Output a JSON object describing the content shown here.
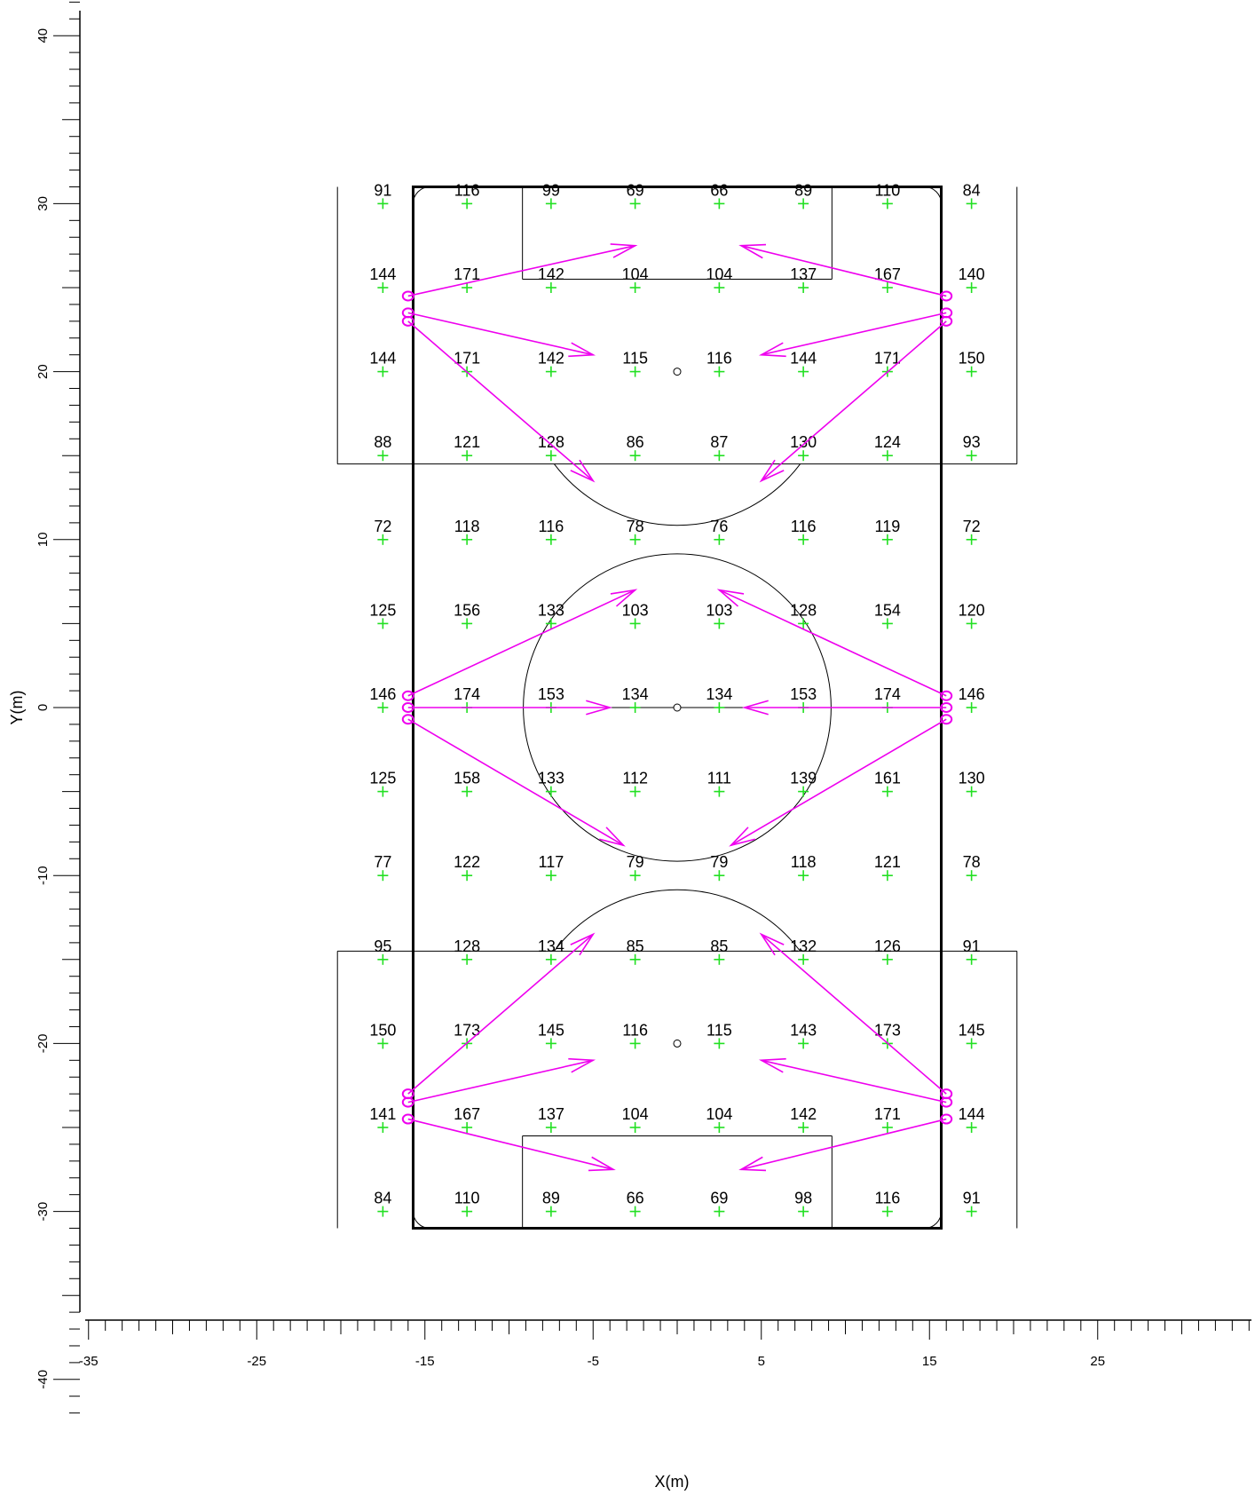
{
  "chart_data": {
    "type": "scatter",
    "xlabel": "X(m)",
    "ylabel": "Y(m)",
    "xlim": [
      -35,
      35
    ],
    "ylim": [
      -42,
      42
    ],
    "x_tick_labels": [
      "-35",
      "-25",
      "-15",
      "-5",
      "5",
      "15",
      "25"
    ],
    "y_tick_labels": [
      "40",
      "30",
      "20",
      "10",
      "0",
      "-10",
      "-20",
      "-30",
      "-40"
    ],
    "grid_x": [
      -17.5,
      -12.5,
      -7.5,
      -2.5,
      2.5,
      7.5,
      12.5,
      17.5
    ],
    "grid_y": [
      30,
      25,
      20,
      15,
      10,
      5,
      0,
      -5,
      -10,
      -15,
      -20,
      -25,
      -30
    ],
    "values": [
      [
        91,
        116,
        99,
        69,
        66,
        89,
        110,
        84
      ],
      [
        144,
        171,
        142,
        104,
        104,
        137,
        167,
        140
      ],
      [
        144,
        171,
        142,
        115,
        116,
        144,
        171,
        150
      ],
      [
        88,
        121,
        128,
        86,
        87,
        130,
        124,
        93
      ],
      [
        72,
        118,
        116,
        78,
        76,
        116,
        119,
        72
      ],
      [
        125,
        156,
        133,
        103,
        103,
        128,
        154,
        120
      ],
      [
        146,
        174,
        153,
        134,
        134,
        153,
        174,
        146
      ],
      [
        125,
        158,
        133,
        112,
        111,
        139,
        161,
        130
      ],
      [
        77,
        122,
        117,
        79,
        79,
        118,
        121,
        78
      ],
      [
        95,
        128,
        134,
        85,
        85,
        132,
        126,
        91
      ],
      [
        150,
        173,
        145,
        116,
        115,
        143,
        173,
        145
      ],
      [
        141,
        167,
        137,
        104,
        104,
        142,
        171,
        144
      ],
      [
        84,
        110,
        89,
        66,
        69,
        98,
        116,
        91
      ]
    ],
    "field": {
      "x_range": [
        -15.7,
        15.7
      ],
      "y_range": [
        -31,
        31
      ],
      "outer_boundary": {
        "x_range": [
          -20.2,
          20.2
        ],
        "y_range": [
          -31,
          31
        ],
        "top_bottom_of_penalty_zone": 14.5
      },
      "goal_box": {
        "x_range": [
          -9.2,
          9.2
        ],
        "depth": 5.5
      },
      "center_circle_radius": 9.15,
      "penalty_spot_y": 20,
      "penalty_arc_radius": 9.15,
      "corner_arc_radius": 1
    },
    "luminaires": [
      {
        "x": -16,
        "y": 24.5,
        "aim": [
          -2.5,
          27.5
        ]
      },
      {
        "x": -16,
        "y": 23.5,
        "aim": [
          -5,
          21
        ]
      },
      {
        "x": -16,
        "y": 23,
        "aim": [
          -5,
          13.5
        ]
      },
      {
        "x": 16,
        "y": 24.5,
        "aim": [
          3.8,
          27.5
        ]
      },
      {
        "x": 16,
        "y": 23.5,
        "aim": [
          5,
          21
        ]
      },
      {
        "x": 16,
        "y": 23,
        "aim": [
          5,
          13.5
        ]
      },
      {
        "x": -16,
        "y": 0.7,
        "aim": [
          -2.5,
          7
        ]
      },
      {
        "x": -16,
        "y": 0,
        "aim": [
          -4,
          0
        ]
      },
      {
        "x": -16,
        "y": -0.7,
        "aim": [
          -3.2,
          -8.2
        ]
      },
      {
        "x": 16,
        "y": 0.7,
        "aim": [
          2.5,
          7
        ]
      },
      {
        "x": 16,
        "y": 0,
        "aim": [
          4,
          0
        ]
      },
      {
        "x": 16,
        "y": -0.7,
        "aim": [
          3.2,
          -8.2
        ]
      },
      {
        "x": -16,
        "y": -23,
        "aim": [
          -5,
          -13.5
        ]
      },
      {
        "x": -16,
        "y": -23.5,
        "aim": [
          -5,
          -21
        ]
      },
      {
        "x": -16,
        "y": -24.5,
        "aim": [
          -3.8,
          -27.5
        ]
      },
      {
        "x": 16,
        "y": -23,
        "aim": [
          5,
          -13.5
        ]
      },
      {
        "x": 16,
        "y": -23.5,
        "aim": [
          5,
          -21
        ]
      },
      {
        "x": 16,
        "y": -24.5,
        "aim": [
          3.8,
          -27.5
        ]
      }
    ],
    "colors": {
      "field": "#000000",
      "markers": "#22e022",
      "luminaires": "#ee00ee"
    }
  }
}
